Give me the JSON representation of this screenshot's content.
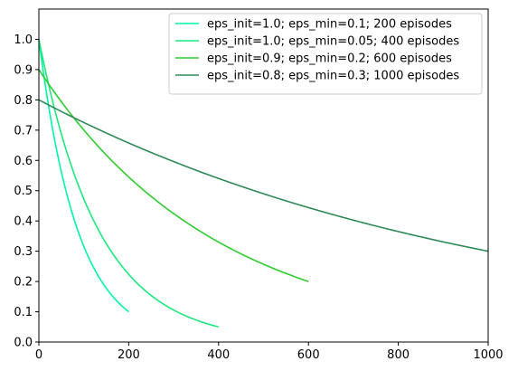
{
  "chart_data": {
    "type": "line",
    "title": "",
    "xlabel": "",
    "ylabel": "",
    "xlim": [
      0,
      1000
    ],
    "ylim": [
      0,
      1.1
    ],
    "xticks": [
      0,
      200,
      400,
      600,
      800,
      1000
    ],
    "yticks": [
      0.0,
      0.1,
      0.2,
      0.3,
      0.4,
      0.5,
      0.6,
      0.7,
      0.8,
      0.9,
      1.0
    ],
    "xtick_labels": [
      "0",
      "200",
      "400",
      "600",
      "800",
      "1000"
    ],
    "ytick_labels": [
      "0.0",
      "0.1",
      "0.2",
      "0.3",
      "0.4",
      "0.5",
      "0.6",
      "0.7",
      "0.8",
      "0.9",
      "1.0"
    ],
    "grid": false,
    "legend_position": "top-right",
    "series": [
      {
        "name": "eps_init=1.0; eps_min=0.1; 200 episodes",
        "color": "#00f5a0",
        "eps_init": 1.0,
        "eps_min": 0.1,
        "episodes": 200
      },
      {
        "name": "eps_init=1.0; eps_min=0.05; 400 episodes",
        "color": "#1de87e",
        "eps_init": 1.0,
        "eps_min": 0.05,
        "episodes": 400
      },
      {
        "name": "eps_init=0.9; eps_min=0.2; 600 episodes",
        "color": "#2ecc30",
        "eps_init": 0.9,
        "eps_min": 0.2,
        "episodes": 600
      },
      {
        "name": "eps_init=0.8; eps_min=0.3; 1000 episodes",
        "color": "#2e8b57",
        "eps_init": 0.8,
        "eps_min": 0.3,
        "episodes": 1000
      }
    ]
  }
}
